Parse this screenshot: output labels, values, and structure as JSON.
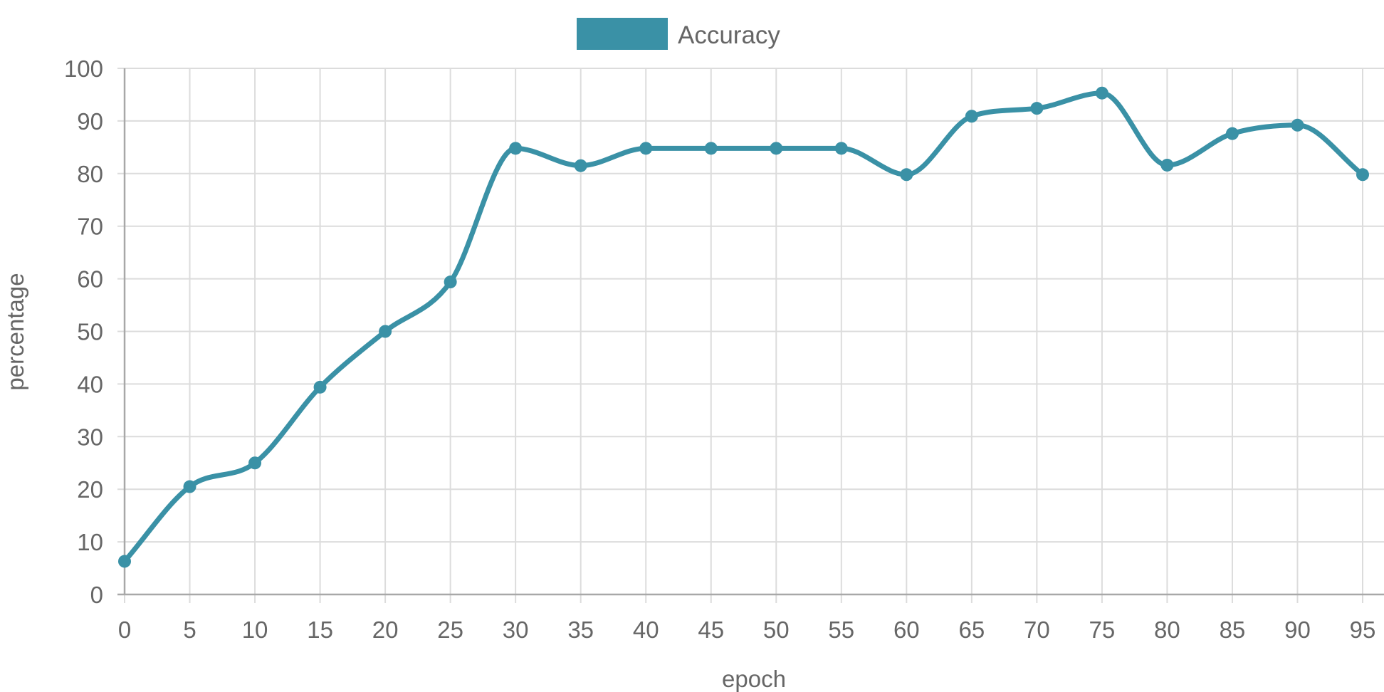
{
  "chart_data": {
    "type": "line",
    "title": "",
    "xlabel": "epoch",
    "ylabel": "percentage",
    "x": [
      0,
      5,
      10,
      15,
      20,
      25,
      30,
      35,
      40,
      45,
      50,
      55,
      60,
      65,
      70,
      75,
      80,
      85,
      90,
      95
    ],
    "x_tick_labels": [
      "0",
      "5",
      "10",
      "15",
      "20",
      "25",
      "30",
      "35",
      "40",
      "45",
      "50",
      "55",
      "60",
      "65",
      "70",
      "75",
      "80",
      "85",
      "90",
      "95"
    ],
    "y_tick_labels": [
      "0",
      "10",
      "20",
      "30",
      "40",
      "50",
      "60",
      "70",
      "80",
      "90",
      "100"
    ],
    "ylim": [
      0,
      100
    ],
    "xlim": [
      0,
      95
    ],
    "grid": true,
    "legend_position": "top-center",
    "series": [
      {
        "name": "Accuracy",
        "color": "#3a91a6",
        "values": [
          6.3,
          20.5,
          25,
          39.4,
          50,
          59.4,
          84.8,
          81.5,
          84.8,
          84.8,
          84.8,
          84.8,
          79.8,
          90.9,
          92.4,
          95.3,
          81.6,
          87.6,
          89.2,
          79.8
        ]
      }
    ]
  }
}
